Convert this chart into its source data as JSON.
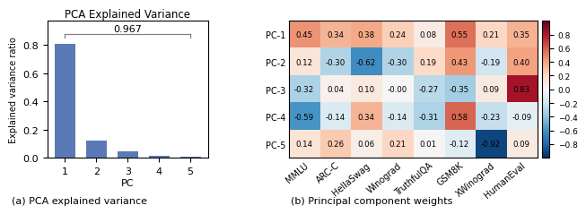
{
  "bar_values": [
    0.807,
    0.121,
    0.047,
    0.013,
    0.008
  ],
  "bar_color": "#5b7ab5",
  "bar_xlabel": "PC",
  "bar_ylabel": "Explained variance ratio",
  "bar_title": "PCA Explained Variance",
  "bar_annotation": "0.967",
  "bar_xlabels": [
    "1",
    "2",
    "3",
    "4",
    "5"
  ],
  "bar_caption": "(a) PCA explained variance",
  "heatmap_data": [
    [
      0.45,
      0.34,
      0.38,
      0.24,
      0.08,
      0.55,
      0.21,
      0.35
    ],
    [
      0.12,
      -0.3,
      -0.62,
      -0.3,
      0.19,
      0.43,
      -0.19,
      0.4
    ],
    [
      -0.32,
      0.04,
      0.1,
      0.0,
      -0.27,
      -0.35,
      0.09,
      0.83
    ],
    [
      -0.59,
      -0.14,
      0.34,
      -0.14,
      -0.31,
      0.58,
      -0.23,
      -0.09
    ],
    [
      0.14,
      0.26,
      0.06,
      0.21,
      0.01,
      -0.12,
      -0.92,
      0.09
    ]
  ],
  "heatmap_cell_labels": [
    [
      "0.45",
      "0.34",
      "0.38",
      "0.24",
      "0.08",
      "0.55",
      "0.21",
      "0.35"
    ],
    [
      "0.12",
      "-0.30",
      "-0.62",
      "-0.30",
      "0.19",
      "0.43",
      "-0.19",
      "0.40"
    ],
    [
      "-0.32",
      "0.04",
      "0.10",
      "-0.00",
      "-0.27",
      "-0.35",
      "0.09",
      "0.83"
    ],
    [
      "-0.59",
      "-0.14",
      "0.34",
      "-0.14",
      "-0.31",
      "0.58",
      "-0.23",
      "-0.09"
    ],
    [
      "0.14",
      "0.26",
      "0.06",
      "0.21",
      "0.01",
      "-0.12",
      "-0.92",
      "0.09"
    ]
  ],
  "heatmap_ylabels": [
    "PC-1",
    "PC-2",
    "PC-3",
    "PC-4",
    "PC-5"
  ],
  "heatmap_xlabels": [
    "MMLU",
    "ARC-C",
    "HellaSwag",
    "Winograd",
    "TruthfulQA",
    "GSM8K",
    "XWinograd",
    "HumanEval"
  ],
  "heatmap_vmin": -1.0,
  "heatmap_vmax": 1.0,
  "heatmap_caption": "(b) Principal component weights",
  "colorbar_ticks": [
    0.8,
    0.6,
    0.4,
    0.2,
    0.0,
    -0.2,
    -0.4,
    -0.6,
    -0.8
  ]
}
